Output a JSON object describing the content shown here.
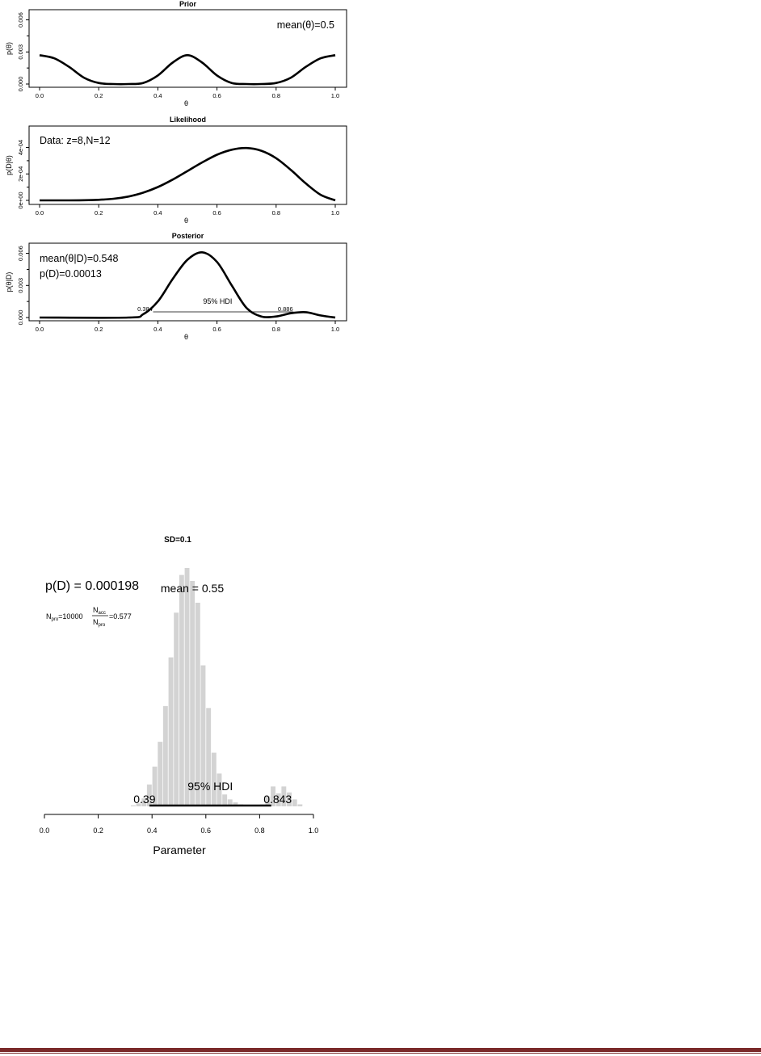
{
  "chart_data": [
    {
      "type": "line",
      "title": "Prior",
      "xlabel": "θ",
      "ylabel": "p(θ)",
      "xlim": [
        0,
        1
      ],
      "ylim": [
        0,
        0.0068
      ],
      "x_ticks": [
        "0.0",
        "0.2",
        "0.4",
        "0.6",
        "0.8",
        "1.0"
      ],
      "y_ticks": [
        "0.000",
        "0.003",
        "0.006"
      ],
      "annotation": "mean(θ)=0.5",
      "series": [
        {
          "x": [
            0.0,
            0.05,
            0.1,
            0.15,
            0.2,
            0.25,
            0.3,
            0.35,
            0.4,
            0.45,
            0.5,
            0.55,
            0.6,
            0.65,
            0.7,
            0.75,
            0.8,
            0.85,
            0.9,
            0.95,
            1.0
          ],
          "values": [
            0.0027,
            0.0024,
            0.0016,
            0.0006,
            0.0001,
            0.0,
            0.0,
            0.0001,
            0.0008,
            0.002,
            0.0027,
            0.002,
            0.0008,
            0.0001,
            0.0,
            0.0,
            0.0001,
            0.0006,
            0.0016,
            0.0024,
            0.0027
          ]
        }
      ]
    },
    {
      "type": "line",
      "title": "Likelihood",
      "xlabel": "θ",
      "ylabel": "p(D|θ)",
      "xlim": [
        0,
        1
      ],
      "ylim": [
        0,
        0.00055
      ],
      "x_ticks": [
        "0.0",
        "0.2",
        "0.4",
        "0.6",
        "0.8",
        "1.0"
      ],
      "y_ticks": [
        "0e+00",
        "2e-04",
        "4e-04"
      ],
      "annotation": "Data: z=8,N=12",
      "series": [
        {
          "x": [
            0.0,
            0.05,
            0.1,
            0.15,
            0.2,
            0.25,
            0.3,
            0.35,
            0.4,
            0.45,
            0.5,
            0.55,
            0.6,
            0.65,
            0.7,
            0.75,
            0.8,
            0.85,
            0.9,
            0.95,
            1.0
          ],
          "values": [
            0.0,
            0.0,
            0.0,
            1e-06,
            4e-06,
            1.2e-05,
            2.9e-05,
            5.8e-05,
            0.000101,
            0.000157,
            0.000222,
            0.000287,
            0.000345,
            0.000383,
            0.000396,
            0.000375,
            0.000319,
            0.00023,
            0.000129,
            4.3e-05,
            0.0
          ]
        }
      ]
    },
    {
      "type": "line",
      "title": "Posterior",
      "xlabel": "θ",
      "ylabel": "p(θ|D)",
      "xlim": [
        0,
        1
      ],
      "ylim": [
        0,
        0.0068
      ],
      "x_ticks": [
        "0.0",
        "0.2",
        "0.4",
        "0.6",
        "0.8",
        "1.0"
      ],
      "y_ticks": [
        "0.000",
        "0.003",
        "0.006"
      ],
      "annotations": [
        "mean(θ|D)=0.548",
        "p(D)=0.00013"
      ],
      "hdi": {
        "label": "95% HDI",
        "low": 0.384,
        "high": 0.886,
        "low_label": "0.384",
        "high_label": "0.886",
        "level": 0.00028
      },
      "series": [
        {
          "x": [
            0.0,
            0.3,
            0.35,
            0.4,
            0.45,
            0.5,
            0.55,
            0.6,
            0.65,
            0.7,
            0.75,
            0.8,
            0.85,
            0.9,
            0.95,
            1.0
          ],
          "values": [
            0.0,
            0.0,
            0.0003,
            0.0015,
            0.0036,
            0.0054,
            0.0061,
            0.0052,
            0.003,
            0.0009,
            0.0001,
            0.0001,
            0.0004,
            0.0005,
            0.0002,
            0.0
          ]
        }
      ]
    },
    {
      "type": "bar",
      "title": "SD=0.1",
      "xlabel": "Parameter",
      "xlim": [
        0,
        1
      ],
      "x_ticks": [
        "0.0",
        "0.2",
        "0.4",
        "0.6",
        "0.8",
        "1.0"
      ],
      "annotations": {
        "pd_label": "p(D) = 0.000198",
        "mean_label": "mean = 0.55",
        "npro_label": "N",
        "npro_sub": "pro",
        "npro_value": "=10000",
        "frac_num": "N",
        "frac_num_sub": "acc",
        "frac_den": "N",
        "frac_den_sub": "pro",
        "frac_value": "=0.577"
      },
      "hdi": {
        "label": "95% HDI",
        "low": 0.39,
        "high": 0.843,
        "low_label": "0.39",
        "high_label": "0.843"
      },
      "bins": [
        0.33,
        0.35,
        0.37,
        0.39,
        0.41,
        0.43,
        0.45,
        0.47,
        0.49,
        0.51,
        0.53,
        0.55,
        0.57,
        0.59,
        0.61,
        0.63,
        0.65,
        0.67,
        0.69,
        0.71,
        0.73,
        0.75,
        0.77,
        0.79,
        0.81,
        0.83,
        0.85,
        0.87,
        0.89,
        0.91,
        0.93,
        0.95
      ],
      "values": [
        1,
        3,
        8,
        22,
        40,
        65,
        101,
        150,
        195,
        233,
        240,
        227,
        205,
        142,
        99,
        54,
        33,
        12,
        7,
        4,
        2,
        1,
        1,
        1,
        2,
        10,
        20,
        13,
        20,
        14,
        7,
        2
      ]
    }
  ]
}
